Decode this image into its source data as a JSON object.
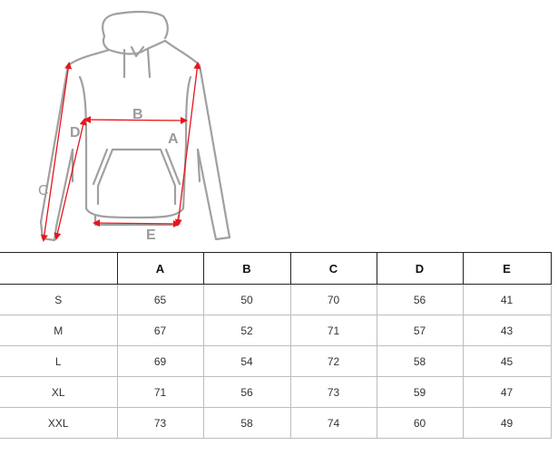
{
  "diagram": {
    "labels": {
      "a": "A",
      "b": "B",
      "c": "C",
      "d": "D",
      "e": "E"
    },
    "colors": {
      "outline": "#a0a0a0",
      "arrow": "#e8141c",
      "label": "#9a9a9a"
    }
  },
  "table": {
    "headers": [
      "",
      "A",
      "B",
      "C",
      "D",
      "E"
    ],
    "rows": [
      [
        "S",
        "65",
        "50",
        "70",
        "56",
        "41"
      ],
      [
        "M",
        "67",
        "52",
        "71",
        "57",
        "43"
      ],
      [
        "L",
        "69",
        "54",
        "72",
        "58",
        "45"
      ],
      [
        "XL",
        "71",
        "56",
        "73",
        "59",
        "47"
      ],
      [
        "XXL",
        "73",
        "58",
        "74",
        "60",
        "49"
      ]
    ]
  }
}
